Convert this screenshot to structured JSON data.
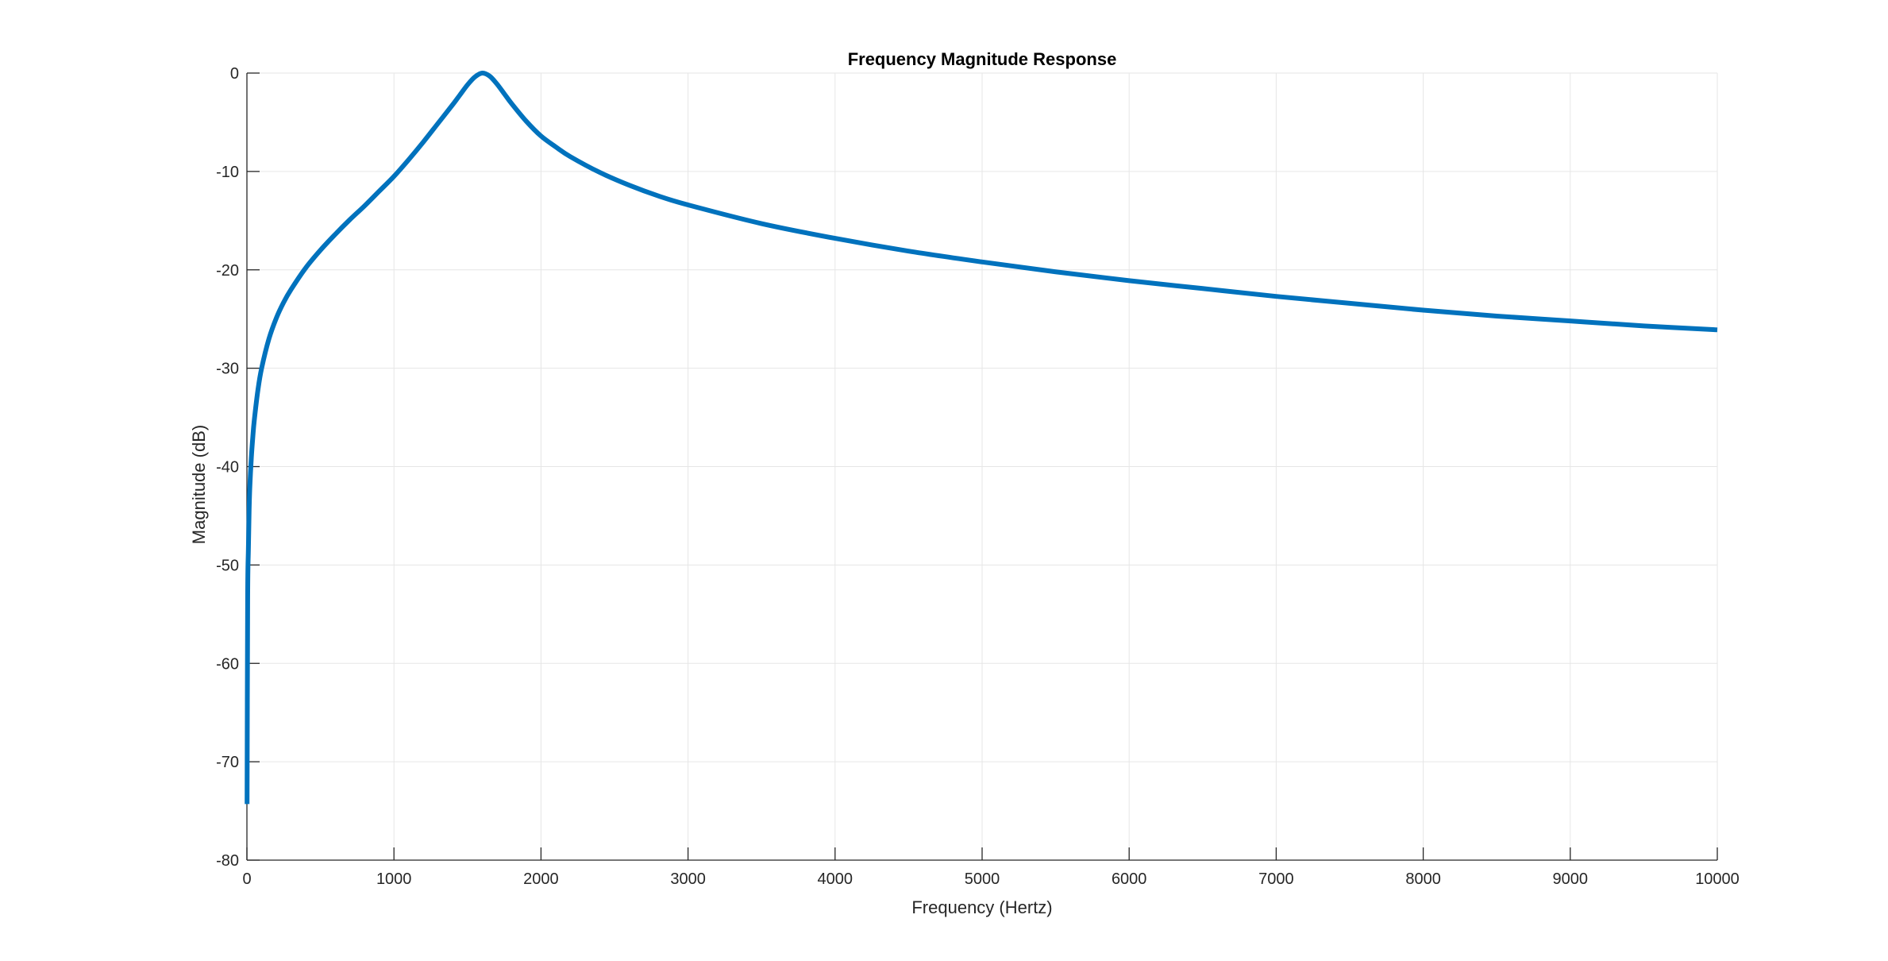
{
  "chart_data": {
    "type": "line",
    "title": "Frequency Magnitude Response",
    "xlabel": "Frequency (Hertz)",
    "ylabel": "Magnitude (dB)",
    "xlim": [
      0,
      10000
    ],
    "ylim": [
      -80,
      0
    ],
    "xticks": [
      0,
      1000,
      2000,
      3000,
      4000,
      5000,
      6000,
      7000,
      8000,
      9000,
      10000
    ],
    "xtick_labels": [
      "0",
      "1000",
      "2000",
      "3000",
      "4000",
      "5000",
      "6000",
      "7000",
      "8000",
      "9000",
      "10000"
    ],
    "yticks": [
      0,
      -10,
      -20,
      -30,
      -40,
      -50,
      -60,
      -70,
      -80
    ],
    "ytick_labels": [
      "0",
      "-10",
      "-20",
      "-30",
      "-40",
      "-50",
      "-60",
      "-70",
      "-80"
    ],
    "grid": true,
    "line_color": "#0072BD",
    "series": [
      {
        "x": [
          1,
          5,
          10,
          15,
          20,
          30,
          40,
          50,
          75,
          100,
          150,
          200,
          250,
          300,
          400,
          500,
          600,
          700,
          800,
          900,
          1000,
          1100,
          1200,
          1300,
          1400,
          1450,
          1500,
          1550,
          1600,
          1650,
          1700,
          1750,
          1800,
          1900,
          2000,
          2100,
          2200,
          2400,
          2600,
          2800,
          3000,
          3500,
          4000,
          4500,
          5000,
          5500,
          6000,
          6500,
          7000,
          7500,
          8000,
          8500,
          9000,
          9500,
          10000
        ],
        "y": [
          -74.3,
          -53.5,
          -48.4,
          -44.4,
          -42.0,
          -39.1,
          -37.0,
          -35.3,
          -32.2,
          -30.0,
          -27.0,
          -24.9,
          -23.3,
          -22.0,
          -19.8,
          -18.0,
          -16.4,
          -14.9,
          -13.5,
          -12.0,
          -10.5,
          -8.8,
          -7.0,
          -5.1,
          -3.2,
          -2.2,
          -1.2,
          -0.4,
          0.0,
          -0.3,
          -1.1,
          -2.1,
          -3.1,
          -4.9,
          -6.4,
          -7.5,
          -8.5,
          -10.1,
          -11.4,
          -12.5,
          -13.4,
          -15.3,
          -16.8,
          -18.1,
          -19.2,
          -20.2,
          -21.1,
          -21.9,
          -22.7,
          -23.4,
          -24.1,
          -24.7,
          -25.2,
          -25.7,
          -26.1
        ]
      }
    ]
  }
}
